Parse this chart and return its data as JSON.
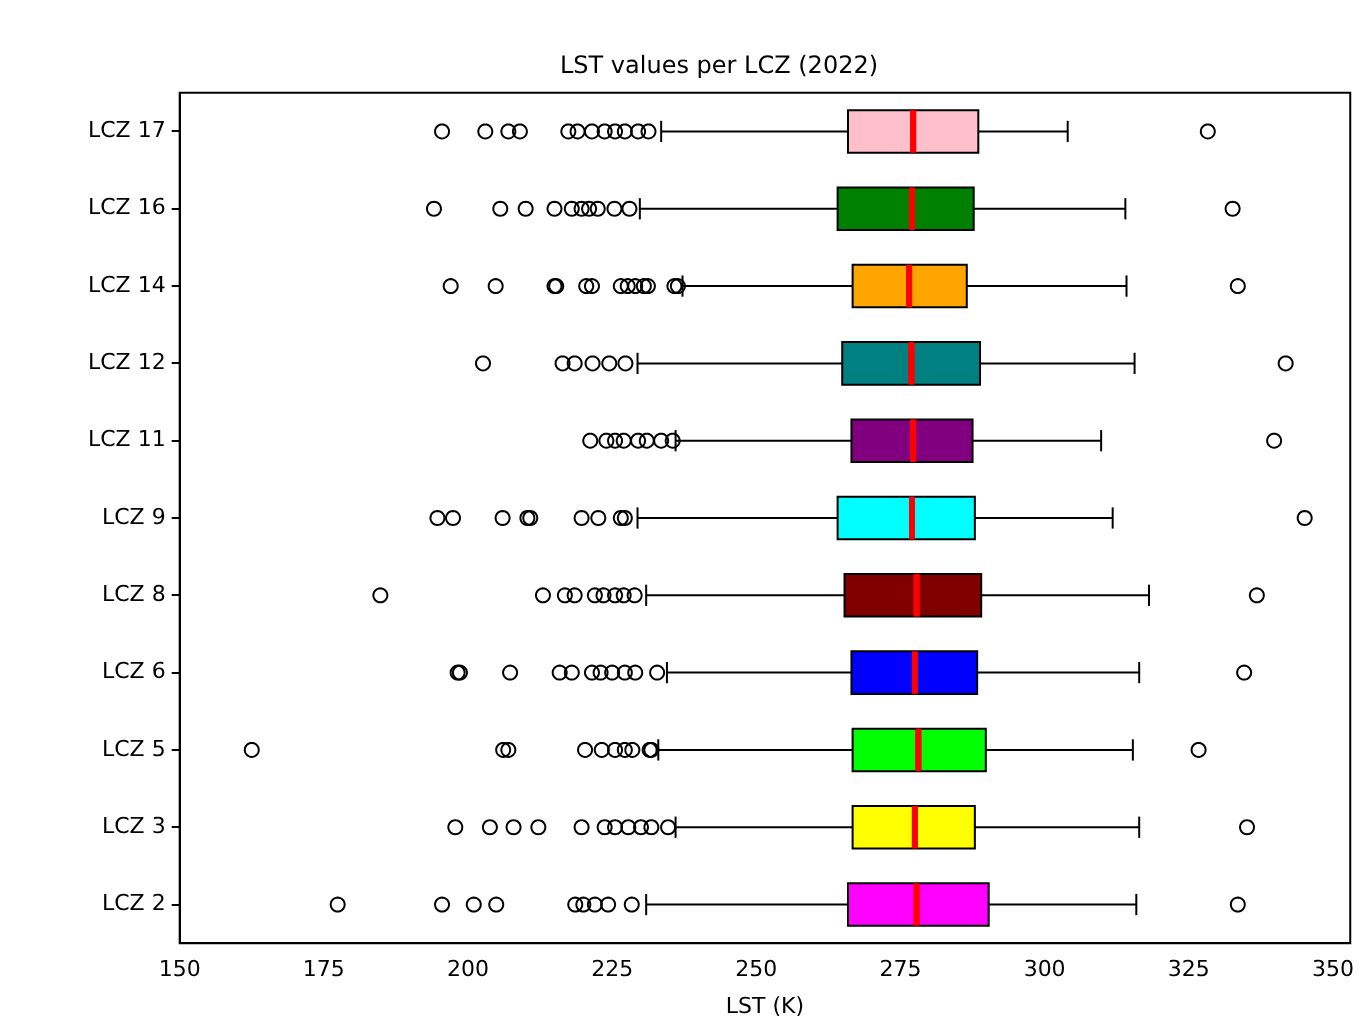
{
  "chart_data": {
    "type": "box",
    "orientation": "horizontal",
    "title": "LST values per LCZ (2022)",
    "xlabel": "LST (K)",
    "categories": [
      "LCZ 17",
      "LCZ 16",
      "LCZ 14",
      "LCZ 12",
      "LCZ 11",
      "LCZ 9",
      "LCZ 8",
      "LCZ 6",
      "LCZ 5",
      "LCZ 3",
      "LCZ 2"
    ],
    "colors": [
      "#ffc0cb",
      "#008000",
      "#ffa500",
      "#008080",
      "#800080",
      "#00ffff",
      "#800000",
      "#0000ff",
      "#00ff00",
      "#ffff00",
      "#ff00ff"
    ],
    "boxes": [
      {
        "low": 233.5,
        "q1": 265.9,
        "median": 277.2,
        "q3": 288.5,
        "high": 304.0,
        "outliers": [
          195.5,
          203,
          207,
          209,
          217.4,
          219,
          221.5,
          223.7,
          225.5,
          227.2,
          229.5,
          231.3,
          328.3
        ]
      },
      {
        "low": 229.8,
        "q1": 264.1,
        "median": 277,
        "q3": 287.7,
        "high": 314.0,
        "outliers": [
          194.1,
          205.6,
          210,
          215,
          218,
          219.7,
          221,
          222.5,
          225.4,
          228,
          332.6
        ]
      },
      {
        "low": 237.2,
        "q1": 266.7,
        "median": 276.5,
        "q3": 286.5,
        "high": 314.2,
        "outliers": [
          197,
          204.8,
          215,
          215.3,
          220.5,
          221.5,
          226.5,
          227.7,
          229,
          230.5,
          231.2,
          235.8,
          236.4,
          333.5
        ]
      },
      {
        "low": 229.4,
        "q1": 264.9,
        "median": 276.9,
        "q3": 288.8,
        "high": 315.6,
        "outliers": [
          202.6,
          216.4,
          218.5,
          221.6,
          224.5,
          227.3,
          341.8
        ]
      },
      {
        "low": 236,
        "q1": 266.5,
        "median": 277.2,
        "q3": 287.5,
        "high": 309.8,
        "outliers": [
          221.2,
          224,
          225.5,
          227,
          229.5,
          231,
          233.5,
          235.5,
          339.8
        ]
      },
      {
        "low": 229.4,
        "q1": 264.1,
        "median": 277,
        "q3": 287.9,
        "high": 311.8,
        "outliers": [
          194.7,
          197.4,
          206,
          210.3,
          210.8,
          219.7,
          222.6,
          226.5,
          227.2,
          345.1
        ]
      },
      {
        "low": 230.9,
        "q1": 265.3,
        "median": 277.8,
        "q3": 289,
        "high": 318.1,
        "outliers": [
          184.8,
          213,
          216.8,
          218.5,
          222,
          223.5,
          225.5,
          227,
          228.9,
          336.8
        ]
      },
      {
        "low": 234.5,
        "q1": 266.5,
        "median": 277.5,
        "q3": 288.3,
        "high": 316.4,
        "outliers": [
          198.2,
          198.6,
          207.3,
          215.9,
          218,
          221.5,
          223,
          225,
          227.2,
          229,
          232.8,
          334.6
        ]
      },
      {
        "low": 233,
        "q1": 266.7,
        "median": 278.1,
        "q3": 289.8,
        "high": 315.3,
        "outliers": [
          162.5,
          206.1,
          207,
          220.3,
          223.2,
          225.5,
          227.2,
          228.5,
          231.5,
          231.8,
          326.7
        ]
      },
      {
        "low": 236,
        "q1": 266.7,
        "median": 277.5,
        "q3": 287.9,
        "high": 316.4,
        "outliers": [
          197.8,
          203.8,
          207.9,
          212.2,
          219.7,
          223.7,
          225.5,
          227.8,
          230,
          231.8,
          234.7,
          335.1
        ]
      },
      {
        "low": 230.9,
        "q1": 265.9,
        "median": 277.8,
        "q3": 290.3,
        "high": 315.9,
        "outliers": [
          177.4,
          195.5,
          201,
          204.9,
          218.6,
          220,
          222,
          224.3,
          228.4,
          333.5
        ]
      }
    ],
    "xlim": [
      150,
      353
    ],
    "xticks": [
      150,
      175,
      200,
      225,
      250,
      275,
      300,
      325,
      350
    ],
    "grid": false,
    "legend": false
  }
}
